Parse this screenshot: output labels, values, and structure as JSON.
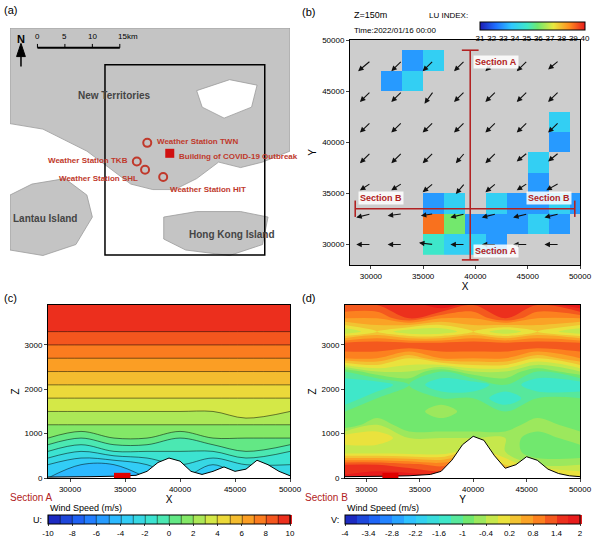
{
  "chart_data": [
    {
      "panel": "(a)",
      "type": "map",
      "compass": "N",
      "xlim": [
        0,
        51
      ],
      "ylim": [
        0,
        44.4
      ],
      "tick_labels": false,
      "scale": [
        0,
        5,
        10,
        {
          "value": 15,
          "label": "15km"
        }
      ],
      "regions": [
        {
          "name": "New Territories",
          "x": 19,
          "y": 32.2
        },
        {
          "name": "Lantau Island",
          "x": 6.4,
          "y": 9.8
        },
        {
          "name": "Hong Kong Island",
          "x": 40.4,
          "y": 6.9
        }
      ],
      "stations": [
        {
          "name": "Weather Station TWN",
          "x": 25.0,
          "y": 23.5
        },
        {
          "name": "Weather Station TKB",
          "x": 23.1,
          "y": 20.1
        },
        {
          "name": "Weather Station SHL",
          "x": 24.6,
          "y": 18.6
        },
        {
          "name": "Weather Station HIT",
          "x": 27.9,
          "y": 17.3
        }
      ],
      "outbreak_building": {
        "name": "Building of COVID-19 Outbreak",
        "x": 29.1,
        "y": 21.6
      }
    },
    {
      "panel": "(b)",
      "type": "heatmap",
      "title": "Z=150m",
      "subtitle": "Time:2022/01/16 00:00",
      "x_label": "X",
      "y_label": "Y",
      "xlim": [
        28000,
        50000
      ],
      "ylim": [
        28000,
        50000
      ],
      "xticks": [
        30000,
        35000,
        40000,
        45000,
        50000
      ],
      "yticks": [
        30000,
        35000,
        40000,
        45000,
        50000
      ],
      "lu_index": {
        "label": "LU INDEX:",
        "x": [
          30000,
          32000,
          34000,
          36000,
          38000,
          40000,
          42000,
          44000,
          46000,
          48000,
          50000
        ],
        "y": [
          30000,
          32000,
          34000,
          36000,
          38000,
          40000,
          42000,
          44000,
          46000,
          48000,
          50000
        ],
        "z": [
          [
            null,
            null,
            null,
            35,
            34,
            34,
            33,
            null,
            null,
            null,
            null
          ],
          [
            null,
            null,
            null,
            39,
            36,
            33,
            33,
            33,
            34,
            33,
            null
          ],
          [
            null,
            null,
            null,
            33,
            34,
            null,
            34,
            33,
            33,
            34,
            33
          ],
          [
            null,
            null,
            null,
            null,
            null,
            null,
            null,
            null,
            33,
            null,
            null
          ],
          [
            null,
            null,
            null,
            null,
            null,
            null,
            null,
            null,
            34,
            null,
            null
          ],
          [
            null,
            null,
            null,
            null,
            null,
            null,
            null,
            null,
            null,
            33,
            null
          ],
          [
            null,
            null,
            null,
            null,
            null,
            null,
            null,
            null,
            null,
            34,
            null
          ],
          [
            null,
            null,
            null,
            null,
            null,
            null,
            null,
            null,
            null,
            null,
            null
          ],
          [
            null,
            33,
            34,
            null,
            null,
            null,
            null,
            null,
            null,
            null,
            null
          ],
          [
            null,
            null,
            33,
            34,
            null,
            null,
            null,
            null,
            null,
            null,
            null
          ],
          [
            null,
            null,
            null,
            null,
            null,
            null,
            null,
            null,
            null,
            null,
            null
          ]
        ],
        "range": [
          31,
          40
        ],
        "ticks": [
          31,
          32,
          33,
          34,
          35,
          36,
          37,
          38,
          39,
          40
        ]
      },
      "wind": {
        "x": [
          30000,
          33000,
          36000,
          39000,
          42000,
          45000,
          48000
        ],
        "y": [
          30000,
          33000,
          36000,
          39000,
          42000,
          45000,
          48000
        ],
        "u": [
          [
            -4,
            -4,
            -4,
            -4,
            -4,
            -4,
            -4
          ],
          [
            -4,
            -4,
            -3.5,
            -4,
            -4,
            -4,
            -4
          ],
          [
            -3,
            -3,
            -3,
            -2.5,
            -3,
            -3,
            -3.5
          ],
          [
            -3,
            -3,
            -3,
            -2.5,
            -3,
            -3,
            -3
          ],
          [
            -3,
            -3,
            -3,
            -3,
            -3,
            -3,
            -3
          ],
          [
            -3,
            -3,
            -2.5,
            -3,
            -3,
            -3,
            -3
          ],
          [
            -3.5,
            -3,
            -3,
            -3,
            -3,
            -3,
            -3
          ]
        ],
        "v": [
          [
            0,
            0,
            0.5,
            0,
            0,
            0,
            0
          ],
          [
            -1,
            -0.5,
            -0.5,
            -1,
            -1,
            -1,
            -1
          ],
          [
            -2,
            -2,
            -2.5,
            -3,
            -2.5,
            -2,
            -2
          ],
          [
            -3,
            -3,
            -3,
            -3,
            -3,
            -2.5,
            -2.5
          ],
          [
            -3,
            -3,
            -3,
            -3,
            -3,
            -3,
            -3
          ],
          [
            -3,
            -3,
            -3.5,
            -3,
            -3,
            -3,
            -3
          ],
          [
            -3,
            -3,
            -3,
            -3,
            -3,
            -3,
            -2.5
          ]
        ]
      },
      "sections": [
        {
          "name": "Section A",
          "x": [
            39500,
            39500
          ],
          "y": [
            28500,
            49000
          ]
        },
        {
          "name": "Section B",
          "x": [
            28500,
            49500
          ],
          "y": [
            33500,
            33500
          ]
        }
      ]
    },
    {
      "panel": "(c)",
      "type": "contour",
      "section": "Section A",
      "colorbar_title": "Wind Speed (m/s)",
      "component": "U:",
      "x_label": "X",
      "y_label": "Z",
      "line_style": "solid",
      "xlim": [
        28000,
        50000
      ],
      "ylim": [
        0,
        3900
      ],
      "xticks": [
        30000,
        35000,
        40000,
        45000,
        50000
      ],
      "yticks": [
        0,
        1000,
        2000,
        3000
      ],
      "x": [
        28000,
        31000,
        34000,
        37000,
        40000,
        43000,
        46000,
        50000
      ],
      "y": [
        0,
        300,
        600,
        900,
        1200,
        1500,
        1800,
        2100,
        2400,
        2700,
        3000,
        3300,
        3600,
        3900
      ],
      "values": [
        [
          -4,
          -5,
          -5,
          -4,
          -3,
          -4,
          -3,
          -3
        ],
        [
          -3,
          -4,
          -4,
          -3,
          -2,
          -3,
          -2,
          -2
        ],
        [
          -1,
          -2,
          -1,
          -1,
          -1,
          -1,
          0,
          -1
        ],
        [
          1,
          0,
          1,
          1,
          0,
          1,
          1,
          1
        ],
        [
          2,
          2,
          2,
          2,
          2,
          2,
          2,
          2
        ],
        [
          3,
          3,
          3,
          3,
          3,
          3,
          4,
          3
        ],
        [
          4,
          4,
          4,
          4,
          4,
          4,
          4,
          4
        ],
        [
          5,
          5,
          5,
          5,
          5,
          5,
          5,
          5
        ],
        [
          6,
          6,
          6,
          6,
          6,
          6,
          6,
          6
        ],
        [
          7,
          7,
          7,
          7,
          7,
          7,
          7,
          7
        ],
        [
          8,
          8,
          8,
          8,
          8,
          8,
          8,
          8
        ],
        [
          9,
          9,
          9,
          9,
          9,
          9,
          9,
          9
        ],
        [
          10,
          10,
          10,
          10,
          9.5,
          10,
          10,
          10
        ],
        [
          10,
          10,
          10,
          10,
          10,
          10,
          10,
          10
        ]
      ],
      "colorbar_range": [
        -10,
        10
      ],
      "colorbar_ticks": [
        -10,
        -8,
        -6,
        -4,
        -2,
        0,
        2,
        4,
        6,
        8,
        10
      ],
      "terrain": {
        "x": [
          28000,
          30000,
          32000,
          34000,
          36000,
          37000,
          38000,
          39000,
          40000,
          41000,
          42000,
          43000,
          44000,
          45000,
          46000,
          47000,
          48000,
          49000,
          50000
        ],
        "height": [
          20,
          20,
          30,
          40,
          60,
          150,
          350,
          450,
          380,
          150,
          80,
          150,
          250,
          150,
          200,
          400,
          300,
          150,
          50
        ]
      },
      "building_x": [
        34000,
        35500
      ]
    },
    {
      "panel": "(d)",
      "type": "contour",
      "section": "Section B",
      "colorbar_title": "Wind Speed (m/s)",
      "component": "V:",
      "x_label": "Y",
      "y_label": "Z",
      "line_style": "none",
      "xlim": [
        28000,
        50000
      ],
      "ylim": [
        0,
        3900
      ],
      "xticks": [
        30000,
        35000,
        40000,
        45000,
        50000
      ],
      "yticks": [
        0,
        1000,
        2000,
        3000
      ],
      "x": [
        28000,
        31000,
        34000,
        37000,
        40000,
        43000,
        46000,
        50000
      ],
      "y": [
        0,
        300,
        600,
        900,
        1200,
        1500,
        1800,
        2100,
        2400,
        2700,
        3000,
        3300,
        3600,
        3900
      ],
      "values": [
        [
          1.8,
          2,
          2,
          1.8,
          2,
          2,
          1,
          0.2
        ],
        [
          1.4,
          1.4,
          1.2,
          1,
          1.4,
          0.2,
          -0.4,
          -0.4
        ],
        [
          -0.4,
          -0.4,
          -0.4,
          -0.4,
          0.2,
          -0.4,
          -1,
          -1
        ],
        [
          0.2,
          0.2,
          -0.4,
          -0.4,
          -0.4,
          -0.4,
          -1,
          -0.4
        ],
        [
          -1,
          -0.4,
          -1,
          -1,
          -1,
          -1,
          -0.4,
          -1
        ],
        [
          -1,
          -1,
          -1,
          -0.4,
          -1,
          -1,
          -1,
          -1
        ],
        [
          -1.6,
          -1,
          -1,
          -1,
          -1,
          -1.6,
          -1,
          -1
        ],
        [
          -1.6,
          -1.6,
          -1,
          -1.6,
          -1.6,
          -1,
          -1.6,
          -1.6
        ],
        [
          -1,
          -0.4,
          -0.4,
          -1,
          -0.4,
          -0.4,
          -1,
          -0.4
        ],
        [
          0.8,
          0.8,
          0.2,
          0.8,
          0.8,
          0.8,
          0.2,
          0.8
        ],
        [
          1.4,
          1.4,
          1.4,
          1.4,
          1.4,
          1.4,
          1.4,
          1.4
        ],
        [
          -0.4,
          0.2,
          -0.4,
          -0.4,
          0.2,
          -0.4,
          0.2,
          -0.4
        ],
        [
          0.8,
          0.8,
          1.4,
          0.8,
          0.8,
          1.4,
          0.8,
          0.8
        ],
        [
          1.4,
          1.4,
          1.4,
          2,
          1.4,
          1.4,
          1.4,
          2
        ]
      ],
      "colorbar_range": [
        -4,
        2
      ],
      "colorbar_ticks": [
        -4,
        -3.4,
        -2.8,
        -2.2,
        -1.6,
        -1,
        -0.4,
        0.2,
        0.8,
        1.4,
        2
      ],
      "terrain": {
        "x": [
          28000,
          30000,
          32000,
          34000,
          36000,
          37000,
          38000,
          39000,
          40000,
          41000,
          42000,
          43000,
          44000,
          45000,
          46000,
          47000,
          48000,
          49000,
          50000
        ],
        "height": [
          30,
          30,
          40,
          50,
          80,
          150,
          400,
          750,
          940,
          850,
          500,
          220,
          300,
          480,
          400,
          200,
          100,
          50,
          30
        ]
      },
      "building_x": [
        31500,
        33000
      ]
    }
  ]
}
